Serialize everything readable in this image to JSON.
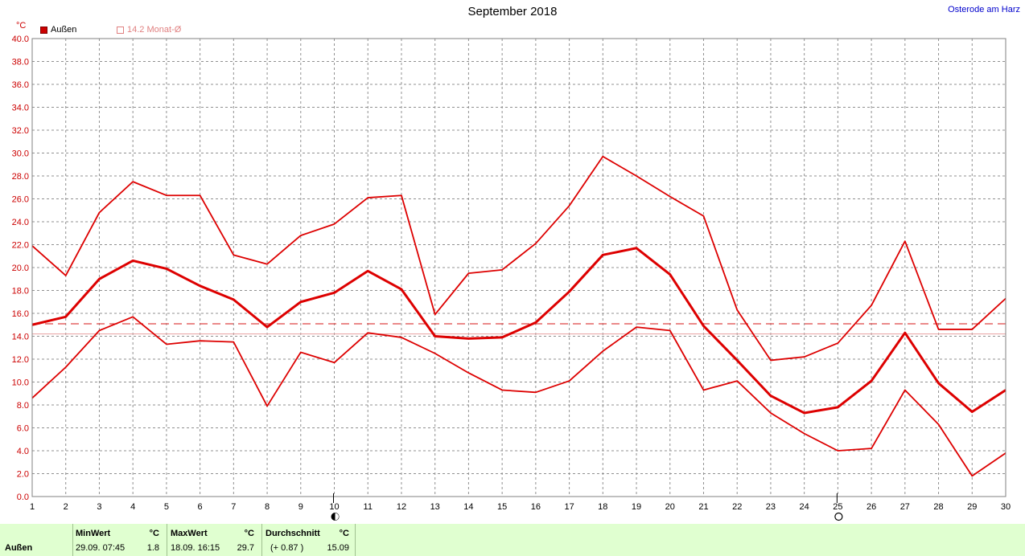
{
  "header": {
    "title": "September 2018",
    "location": "Osterode am Harz",
    "unit": "°C"
  },
  "legend": {
    "series_label": "Außen",
    "avg_label": "14.2 Monat-Ø"
  },
  "colors": {
    "series": "#dd0000",
    "grid": "#909090",
    "avg_line": "#dd4444"
  },
  "chart_data": {
    "type": "line",
    "x": [
      1,
      2,
      3,
      4,
      5,
      6,
      7,
      8,
      9,
      10,
      11,
      12,
      13,
      14,
      15,
      16,
      17,
      18,
      19,
      20,
      21,
      22,
      23,
      24,
      25,
      26,
      27,
      28,
      29,
      30
    ],
    "xlim": [
      1,
      30
    ],
    "ylim": [
      0,
      40
    ],
    "yticks": [
      "0.0",
      "2.0",
      "4.0",
      "6.0",
      "8.0",
      "10.0",
      "12.0",
      "14.0",
      "16.0",
      "18.0",
      "20.0",
      "22.0",
      "24.0",
      "26.0",
      "28.0",
      "30.0",
      "32.0",
      "34.0",
      "36.0",
      "38.0",
      "40.0"
    ],
    "grid": true,
    "series": [
      {
        "role": "max",
        "values": [
          21.9,
          19.3,
          24.8,
          27.5,
          26.3,
          26.3,
          21.1,
          20.3,
          22.8,
          23.8,
          26.1,
          26.3,
          15.9,
          19.5,
          19.8,
          22.1,
          25.4,
          29.7,
          28.0,
          26.2,
          24.5,
          16.3,
          11.9,
          12.2,
          13.4,
          16.7,
          22.3,
          14.6,
          14.6,
          17.3
        ]
      },
      {
        "role": "mean",
        "values": [
          15.0,
          15.7,
          19.0,
          20.6,
          19.9,
          18.4,
          17.2,
          14.8,
          17.0,
          17.8,
          19.7,
          18.1,
          14.0,
          13.8,
          13.9,
          15.2,
          17.9,
          21.1,
          21.7,
          19.4,
          14.9,
          11.9,
          8.8,
          7.3,
          7.8,
          10.1,
          14.3,
          9.9,
          7.4,
          9.3
        ]
      },
      {
        "role": "min",
        "values": [
          8.6,
          11.3,
          14.5,
          15.7,
          13.3,
          13.6,
          13.5,
          7.9,
          12.6,
          11.7,
          14.3,
          13.9,
          12.5,
          10.8,
          9.3,
          9.1,
          10.1,
          12.7,
          14.8,
          14.5,
          9.3,
          10.1,
          7.3,
          5.5,
          4.0,
          4.2,
          9.3,
          6.3,
          1.8,
          3.8
        ]
      }
    ],
    "reference_lines": [
      15.09,
      14.2
    ],
    "moon_phases": [
      {
        "day": 10,
        "icon": "half-moon-icon"
      },
      {
        "day": 25,
        "icon": "full-moon-icon"
      }
    ]
  },
  "stats": {
    "row_label": "Außen",
    "min": {
      "header": "MinWert",
      "unit": "°C",
      "datetime": "29.09.  07:45",
      "value": "1.8"
    },
    "max": {
      "header": "MaxWert",
      "unit": "°C",
      "datetime": "18.09.  16:15",
      "value": "29.7"
    },
    "avg": {
      "header": "Durchschnitt",
      "unit": "°C",
      "delta": "(+ 0.87 )",
      "value": "15.09"
    }
  }
}
